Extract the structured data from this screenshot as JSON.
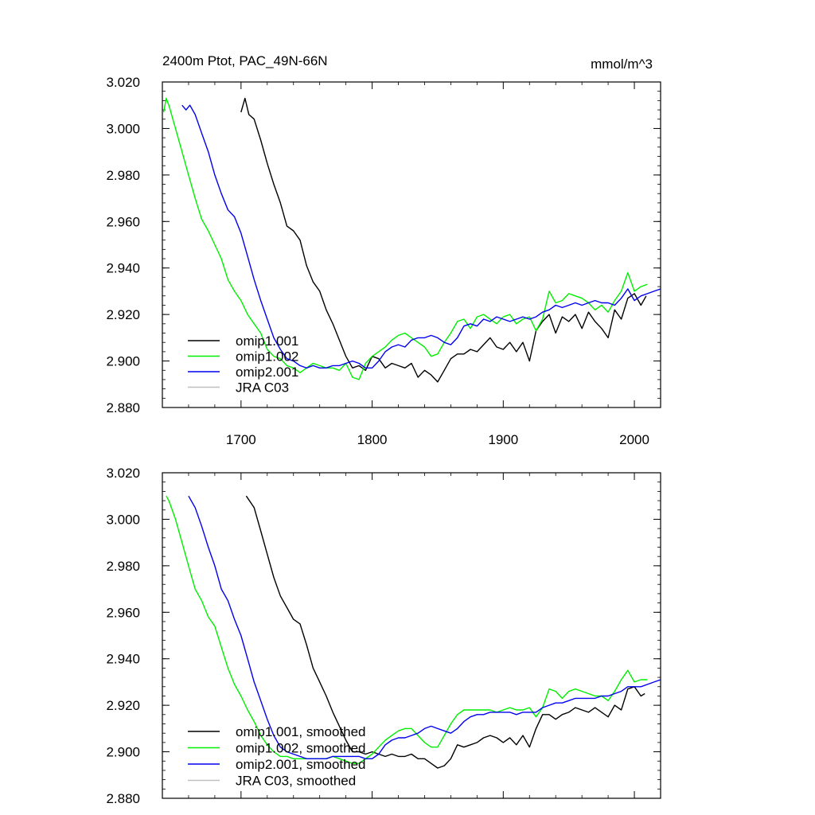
{
  "figure": {
    "title_left": "2400m Ptot, PAC_49N-66N",
    "title_right": "mmol/m^3"
  },
  "chart_data": [
    {
      "type": "line",
      "panel": "top",
      "xlim": [
        1640,
        2020
      ],
      "ylim": [
        2.88,
        3.02
      ],
      "x_ticks": [
        "1700",
        "1800",
        "1900",
        "2000"
      ],
      "y_ticks": [
        "2.880",
        "2.900",
        "2.920",
        "2.940",
        "2.960",
        "2.980",
        "3.000",
        "3.020"
      ],
      "legend_position": "bottom-left",
      "series": [
        {
          "name": "omip1.001",
          "color": "#000000",
          "x": [
            1700,
            1703,
            1706,
            1710,
            1715,
            1720,
            1725,
            1730,
            1735,
            1740,
            1745,
            1750,
            1755,
            1760,
            1765,
            1770,
            1775,
            1780,
            1785,
            1790,
            1795,
            1800,
            1805,
            1810,
            1815,
            1820,
            1825,
            1830,
            1835,
            1840,
            1845,
            1850,
            1855,
            1860,
            1865,
            1870,
            1875,
            1880,
            1885,
            1890,
            1895,
            1900,
            1905,
            1910,
            1915,
            1920,
            1925,
            1930,
            1935,
            1940,
            1945,
            1950,
            1955,
            1960,
            1965,
            1970,
            1975,
            1980,
            1985,
            1990,
            1995,
            2000,
            2005,
            2009
          ],
          "y": [
            3.007,
            3.013,
            3.006,
            3.004,
            2.995,
            2.985,
            2.976,
            2.968,
            2.958,
            2.956,
            2.952,
            2.941,
            2.934,
            2.93,
            2.922,
            2.916,
            2.909,
            2.902,
            2.897,
            2.898,
            2.896,
            2.902,
            2.901,
            2.897,
            2.899,
            2.898,
            2.897,
            2.899,
            2.893,
            2.896,
            2.894,
            2.891,
            2.896,
            2.901,
            2.903,
            2.903,
            2.905,
            2.904,
            2.907,
            2.91,
            2.906,
            2.905,
            2.908,
            2.904,
            2.908,
            2.9,
            2.913,
            2.917,
            2.92,
            2.912,
            2.919,
            2.917,
            2.92,
            2.914,
            2.921,
            2.917,
            2.914,
            2.91,
            2.922,
            2.918,
            2.927,
            2.929,
            2.924,
            2.928
          ]
        },
        {
          "name": "omip1.002",
          "color": "#00ee00",
          "x": [
            1641,
            1643,
            1645,
            1650,
            1655,
            1660,
            1665,
            1670,
            1675,
            1680,
            1685,
            1690,
            1695,
            1700,
            1705,
            1710,
            1715,
            1720,
            1725,
            1730,
            1735,
            1740,
            1745,
            1750,
            1755,
            1760,
            1765,
            1770,
            1775,
            1780,
            1785,
            1790,
            1795,
            1800,
            1805,
            1810,
            1815,
            1820,
            1825,
            1830,
            1835,
            1840,
            1845,
            1850,
            1855,
            1860,
            1865,
            1870,
            1875,
            1880,
            1885,
            1890,
            1895,
            1900,
            1905,
            1910,
            1915,
            1920,
            1925,
            1930,
            1935,
            1940,
            1945,
            1950,
            1955,
            1960,
            1965,
            1970,
            1975,
            1980,
            1985,
            1990,
            1995,
            2000,
            2005,
            2010
          ],
          "y": [
            3.007,
            3.013,
            3.01,
            3.0,
            2.99,
            2.98,
            2.97,
            2.961,
            2.956,
            2.95,
            2.944,
            2.935,
            2.93,
            2.926,
            2.92,
            2.916,
            2.912,
            2.905,
            2.902,
            2.901,
            2.898,
            2.897,
            2.895,
            2.897,
            2.899,
            2.898,
            2.897,
            2.897,
            2.896,
            2.899,
            2.893,
            2.892,
            2.899,
            2.902,
            2.904,
            2.906,
            2.909,
            2.911,
            2.912,
            2.91,
            2.908,
            2.906,
            2.902,
            2.903,
            2.908,
            2.912,
            2.917,
            2.918,
            2.914,
            2.919,
            2.92,
            2.918,
            2.916,
            2.919,
            2.92,
            2.916,
            2.918,
            2.919,
            2.913,
            2.918,
            2.93,
            2.925,
            2.926,
            2.929,
            2.928,
            2.927,
            2.925,
            2.922,
            2.924,
            2.921,
            2.926,
            2.93,
            2.938,
            2.93,
            2.932,
            2.933
          ]
        },
        {
          "name": "omip2.001",
          "color": "#0000ee",
          "x": [
            1655,
            1658,
            1661,
            1665,
            1670,
            1675,
            1680,
            1685,
            1690,
            1695,
            1700,
            1705,
            1710,
            1715,
            1720,
            1725,
            1730,
            1735,
            1740,
            1745,
            1750,
            1755,
            1760,
            1765,
            1770,
            1775,
            1780,
            1785,
            1790,
            1795,
            1800,
            1805,
            1810,
            1815,
            1820,
            1825,
            1830,
            1835,
            1840,
            1845,
            1850,
            1855,
            1860,
            1865,
            1870,
            1875,
            1880,
            1885,
            1890,
            1895,
            1900,
            1905,
            1910,
            1915,
            1920,
            1925,
            1930,
            1935,
            1940,
            1945,
            1950,
            1955,
            1960,
            1965,
            1970,
            1975,
            1980,
            1985,
            1990,
            1995,
            2000,
            2005,
            2010,
            2015,
            2020
          ],
          "y": [
            3.01,
            3.008,
            3.01,
            3.006,
            2.998,
            2.99,
            2.98,
            2.972,
            2.965,
            2.962,
            2.955,
            2.945,
            2.935,
            2.926,
            2.918,
            2.91,
            2.905,
            2.901,
            2.9,
            2.898,
            2.897,
            2.898,
            2.897,
            2.897,
            2.898,
            2.898,
            2.899,
            2.9,
            2.899,
            2.897,
            2.897,
            2.9,
            2.904,
            2.906,
            2.907,
            2.906,
            2.909,
            2.91,
            2.91,
            2.911,
            2.91,
            2.908,
            2.907,
            2.91,
            2.915,
            2.916,
            2.915,
            2.918,
            2.917,
            2.919,
            2.918,
            2.917,
            2.918,
            2.919,
            2.918,
            2.919,
            2.921,
            2.922,
            2.924,
            2.923,
            2.924,
            2.925,
            2.924,
            2.925,
            2.926,
            2.925,
            2.925,
            2.924,
            2.927,
            2.931,
            2.926,
            2.928,
            2.929,
            2.93,
            2.931
          ]
        },
        {
          "name": "JRA C03",
          "color": "#c0c0c0",
          "x": [],
          "y": []
        }
      ]
    },
    {
      "type": "line",
      "panel": "bottom",
      "xlim": [
        1640,
        2020
      ],
      "ylim": [
        2.88,
        3.02
      ],
      "y_ticks": [
        "2.880",
        "2.900",
        "2.920",
        "2.940",
        "2.960",
        "2.980",
        "3.000",
        "3.020"
      ],
      "legend_position": "bottom-left",
      "series": [
        {
          "name": "omip1.001, smoothed",
          "color": "#000000",
          "x": [
            1704,
            1710,
            1715,
            1720,
            1725,
            1730,
            1735,
            1740,
            1745,
            1750,
            1755,
            1760,
            1765,
            1770,
            1775,
            1780,
            1785,
            1790,
            1795,
            1800,
            1805,
            1810,
            1815,
            1820,
            1825,
            1830,
            1835,
            1840,
            1845,
            1850,
            1855,
            1860,
            1865,
            1870,
            1875,
            1880,
            1885,
            1890,
            1895,
            1900,
            1905,
            1910,
            1915,
            1920,
            1925,
            1930,
            1935,
            1940,
            1945,
            1950,
            1955,
            1960,
            1965,
            1970,
            1975,
            1980,
            1985,
            1990,
            1995,
            2000,
            2005,
            2008
          ],
          "y": [
            3.01,
            3.005,
            2.995,
            2.985,
            2.975,
            2.967,
            2.962,
            2.957,
            2.955,
            2.946,
            2.936,
            2.93,
            2.924,
            2.917,
            2.911,
            2.905,
            2.9,
            2.9,
            2.899,
            2.9,
            2.899,
            2.898,
            2.899,
            2.898,
            2.898,
            2.899,
            2.897,
            2.897,
            2.895,
            2.893,
            2.894,
            2.897,
            2.903,
            2.902,
            2.903,
            2.904,
            2.906,
            2.907,
            2.906,
            2.904,
            2.906,
            2.903,
            2.907,
            2.902,
            2.91,
            2.916,
            2.916,
            2.914,
            2.916,
            2.917,
            2.919,
            2.918,
            2.917,
            2.919,
            2.917,
            2.915,
            2.92,
            2.918,
            2.927,
            2.928,
            2.924,
            2.925
          ]
        },
        {
          "name": "omip1.002, smoothed",
          "color": "#00ee00",
          "x": [
            1643,
            1645,
            1650,
            1655,
            1660,
            1665,
            1670,
            1675,
            1680,
            1685,
            1690,
            1695,
            1700,
            1705,
            1710,
            1715,
            1720,
            1725,
            1730,
            1735,
            1740,
            1745,
            1750,
            1755,
            1760,
            1765,
            1770,
            1775,
            1780,
            1785,
            1790,
            1795,
            1800,
            1805,
            1810,
            1815,
            1820,
            1825,
            1830,
            1835,
            1840,
            1845,
            1850,
            1855,
            1860,
            1865,
            1870,
            1875,
            1880,
            1885,
            1890,
            1895,
            1900,
            1905,
            1910,
            1915,
            1920,
            1925,
            1930,
            1935,
            1940,
            1945,
            1950,
            1955,
            1960,
            1965,
            1970,
            1975,
            1980,
            1985,
            1990,
            1995,
            2000,
            2005,
            2010
          ],
          "y": [
            3.01,
            3.008,
            3.0,
            2.99,
            2.98,
            2.97,
            2.965,
            2.958,
            2.954,
            2.945,
            2.936,
            2.929,
            2.924,
            2.918,
            2.913,
            2.907,
            2.903,
            2.9,
            2.898,
            2.898,
            2.897,
            2.897,
            2.897,
            2.897,
            2.897,
            2.897,
            2.898,
            2.897,
            2.896,
            2.895,
            2.895,
            2.897,
            2.899,
            2.902,
            2.905,
            2.907,
            2.909,
            2.91,
            2.91,
            2.907,
            2.904,
            2.902,
            2.902,
            2.907,
            2.912,
            2.916,
            2.918,
            2.918,
            2.918,
            2.918,
            2.918,
            2.917,
            2.918,
            2.919,
            2.918,
            2.918,
            2.919,
            2.915,
            2.919,
            2.927,
            2.926,
            2.923,
            2.926,
            2.927,
            2.926,
            2.925,
            2.924,
            2.924,
            2.922,
            2.926,
            2.931,
            2.935,
            2.93,
            2.931,
            2.931
          ]
        },
        {
          "name": "omip2.001, smoothed",
          "color": "#0000ee",
          "x": [
            1660,
            1665,
            1670,
            1675,
            1680,
            1685,
            1690,
            1695,
            1700,
            1705,
            1710,
            1715,
            1720,
            1725,
            1730,
            1735,
            1740,
            1745,
            1750,
            1755,
            1760,
            1765,
            1770,
            1775,
            1780,
            1785,
            1790,
            1795,
            1800,
            1805,
            1810,
            1815,
            1820,
            1825,
            1830,
            1835,
            1840,
            1845,
            1850,
            1855,
            1860,
            1865,
            1870,
            1875,
            1880,
            1885,
            1890,
            1895,
            1900,
            1905,
            1910,
            1915,
            1920,
            1925,
            1930,
            1935,
            1940,
            1945,
            1950,
            1955,
            1960,
            1965,
            1970,
            1975,
            1980,
            1985,
            1990,
            1995,
            2000,
            2005,
            2010,
            2015,
            2020
          ],
          "y": [
            3.01,
            3.005,
            2.997,
            2.988,
            2.98,
            2.97,
            2.965,
            2.957,
            2.95,
            2.94,
            2.93,
            2.922,
            2.914,
            2.907,
            2.902,
            2.9,
            2.899,
            2.898,
            2.897,
            2.897,
            2.897,
            2.897,
            2.898,
            2.898,
            2.898,
            2.898,
            2.898,
            2.897,
            2.897,
            2.899,
            2.903,
            2.905,
            2.906,
            2.906,
            2.907,
            2.908,
            2.91,
            2.911,
            2.91,
            2.909,
            2.908,
            2.91,
            2.913,
            2.915,
            2.916,
            2.916,
            2.917,
            2.917,
            2.917,
            2.917,
            2.916,
            2.917,
            2.917,
            2.917,
            2.919,
            2.92,
            2.921,
            2.921,
            2.922,
            2.923,
            2.923,
            2.923,
            2.923,
            2.924,
            2.924,
            2.925,
            2.926,
            2.928,
            2.928,
            2.928,
            2.929,
            2.93,
            2.931
          ]
        },
        {
          "name": "JRA C03, smoothed",
          "color": "#c0c0c0",
          "x": [],
          "y": []
        }
      ]
    }
  ]
}
